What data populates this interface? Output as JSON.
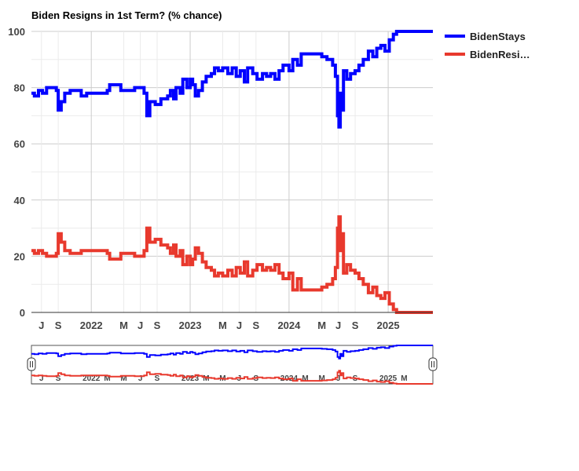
{
  "chart_data": {
    "type": "line",
    "title": "Biden Resigns in 1st Term? (% chance)",
    "ylim": [
      0,
      100
    ],
    "y_ticks": [
      0,
      20,
      40,
      60,
      80,
      100
    ],
    "x_range": [
      "2021-05-25",
      "2025-06-15"
    ],
    "x_ticks": [
      {
        "date": "2021-07-01",
        "label": "J"
      },
      {
        "date": "2021-09-01",
        "label": "S"
      },
      {
        "date": "2022-01-01",
        "label": "2022"
      },
      {
        "date": "2022-05-01",
        "label": "M"
      },
      {
        "date": "2022-07-01",
        "label": "J"
      },
      {
        "date": "2022-09-01",
        "label": "S"
      },
      {
        "date": "2023-01-01",
        "label": "2023"
      },
      {
        "date": "2023-05-01",
        "label": "M"
      },
      {
        "date": "2023-07-01",
        "label": "J"
      },
      {
        "date": "2023-09-01",
        "label": "S"
      },
      {
        "date": "2024-01-01",
        "label": "2024"
      },
      {
        "date": "2024-05-01",
        "label": "M"
      },
      {
        "date": "2024-07-01",
        "label": "J"
      },
      {
        "date": "2024-09-01",
        "label": "S"
      },
      {
        "date": "2025-01-01",
        "label": "2025"
      }
    ],
    "mini_x_ticks": [
      {
        "date": "2021-07-01",
        "label": "J"
      },
      {
        "date": "2021-09-01",
        "label": "S"
      },
      {
        "date": "2022-01-01",
        "label": "2022"
      },
      {
        "date": "2022-03-01",
        "label": "M"
      },
      {
        "date": "2022-05-01",
        "label": "M"
      },
      {
        "date": "2022-07-01",
        "label": "J"
      },
      {
        "date": "2022-09-01",
        "label": "S"
      },
      {
        "date": "2023-01-01",
        "label": "2023"
      },
      {
        "date": "2023-03-01",
        "label": "M"
      },
      {
        "date": "2023-05-01",
        "label": "M"
      },
      {
        "date": "2023-07-01",
        "label": "J"
      },
      {
        "date": "2023-09-01",
        "label": "S"
      },
      {
        "date": "2024-01-01",
        "label": "2024"
      },
      {
        "date": "2024-03-01",
        "label": "M"
      },
      {
        "date": "2024-05-01",
        "label": "M"
      },
      {
        "date": "2024-07-01",
        "label": "J"
      },
      {
        "date": "2024-09-01",
        "label": "S"
      },
      {
        "date": "2025-01-01",
        "label": "2025"
      },
      {
        "date": "2025-03-01",
        "label": "M"
      }
    ],
    "legend_position": "right",
    "grid": true,
    "series": [
      {
        "name": "BidenStays",
        "color": "#0000ff",
        "points": [
          [
            "2021-05-25",
            78
          ],
          [
            "2021-06-05",
            77
          ],
          [
            "2021-06-20",
            79
          ],
          [
            "2021-07-05",
            78
          ],
          [
            "2021-07-20",
            80
          ],
          [
            "2021-08-10",
            80
          ],
          [
            "2021-08-25",
            79
          ],
          [
            "2021-09-01",
            72
          ],
          [
            "2021-09-12",
            75
          ],
          [
            "2021-09-25",
            78
          ],
          [
            "2021-10-15",
            79
          ],
          [
            "2021-11-05",
            79
          ],
          [
            "2021-11-25",
            77
          ],
          [
            "2021-12-15",
            78
          ],
          [
            "2022-01-01",
            78
          ],
          [
            "2022-02-01",
            78
          ],
          [
            "2022-03-01",
            79
          ],
          [
            "2022-03-10",
            81
          ],
          [
            "2022-04-10",
            81
          ],
          [
            "2022-04-20",
            79
          ],
          [
            "2022-05-15",
            79
          ],
          [
            "2022-06-10",
            80
          ],
          [
            "2022-07-01",
            80
          ],
          [
            "2022-07-15",
            78
          ],
          [
            "2022-07-25",
            70
          ],
          [
            "2022-08-05",
            75
          ],
          [
            "2022-08-25",
            74
          ],
          [
            "2022-09-15",
            76
          ],
          [
            "2022-10-10",
            77
          ],
          [
            "2022-10-20",
            79
          ],
          [
            "2022-11-01",
            76
          ],
          [
            "2022-11-10",
            80
          ],
          [
            "2022-11-25",
            78
          ],
          [
            "2022-12-05",
            83
          ],
          [
            "2022-12-20",
            80
          ],
          [
            "2023-01-01",
            83
          ],
          [
            "2023-01-10",
            81
          ],
          [
            "2023-01-20",
            77
          ],
          [
            "2023-02-01",
            79
          ],
          [
            "2023-02-15",
            82
          ],
          [
            "2023-03-01",
            84
          ],
          [
            "2023-03-20",
            85
          ],
          [
            "2023-04-01",
            87
          ],
          [
            "2023-04-15",
            86
          ],
          [
            "2023-05-01",
            87
          ],
          [
            "2023-05-20",
            85
          ],
          [
            "2023-06-05",
            87
          ],
          [
            "2023-06-20",
            84
          ],
          [
            "2023-07-05",
            86
          ],
          [
            "2023-07-20",
            82
          ],
          [
            "2023-08-01",
            87
          ],
          [
            "2023-08-20",
            85
          ],
          [
            "2023-09-05",
            83
          ],
          [
            "2023-09-25",
            85
          ],
          [
            "2023-10-10",
            84
          ],
          [
            "2023-10-25",
            85
          ],
          [
            "2023-11-10",
            83
          ],
          [
            "2023-11-25",
            86
          ],
          [
            "2023-12-10",
            88
          ],
          [
            "2024-01-01",
            86
          ],
          [
            "2024-01-15",
            90
          ],
          [
            "2024-02-01",
            88
          ],
          [
            "2024-02-15",
            92
          ],
          [
            "2024-03-15",
            92
          ],
          [
            "2024-04-15",
            92
          ],
          [
            "2024-05-01",
            91
          ],
          [
            "2024-05-20",
            90
          ],
          [
            "2024-06-10",
            88
          ],
          [
            "2024-06-20",
            84
          ],
          [
            "2024-06-28",
            70
          ],
          [
            "2024-07-03",
            66
          ],
          [
            "2024-07-08",
            78
          ],
          [
            "2024-07-14",
            72
          ],
          [
            "2024-07-20",
            86
          ],
          [
            "2024-08-01",
            83
          ],
          [
            "2024-08-15",
            85
          ],
          [
            "2024-09-01",
            86
          ],
          [
            "2024-09-15",
            88
          ],
          [
            "2024-10-01",
            90
          ],
          [
            "2024-10-20",
            93
          ],
          [
            "2024-11-05",
            91
          ],
          [
            "2024-11-20",
            94
          ],
          [
            "2024-12-05",
            95
          ],
          [
            "2024-12-20",
            93
          ],
          [
            "2025-01-05",
            97
          ],
          [
            "2025-01-20",
            99
          ],
          [
            "2025-02-01",
            100
          ],
          [
            "2025-06-15",
            100
          ]
        ]
      },
      {
        "name": "BidenResi…",
        "color": "#e8392d",
        "points": [
          [
            "2021-05-25",
            22
          ],
          [
            "2021-06-05",
            21
          ],
          [
            "2021-06-20",
            22
          ],
          [
            "2021-07-05",
            21
          ],
          [
            "2021-07-20",
            20
          ],
          [
            "2021-08-10",
            20
          ],
          [
            "2021-08-25",
            21
          ],
          [
            "2021-09-01",
            28
          ],
          [
            "2021-09-12",
            25
          ],
          [
            "2021-09-25",
            22
          ],
          [
            "2021-10-15",
            21
          ],
          [
            "2021-11-05",
            21
          ],
          [
            "2021-11-25",
            22
          ],
          [
            "2021-12-15",
            22
          ],
          [
            "2022-01-01",
            22
          ],
          [
            "2022-02-01",
            22
          ],
          [
            "2022-03-01",
            21
          ],
          [
            "2022-03-10",
            19
          ],
          [
            "2022-04-10",
            19
          ],
          [
            "2022-04-20",
            21
          ],
          [
            "2022-05-15",
            21
          ],
          [
            "2022-06-10",
            20
          ],
          [
            "2022-07-01",
            20
          ],
          [
            "2022-07-15",
            22
          ],
          [
            "2022-07-25",
            30
          ],
          [
            "2022-08-05",
            25
          ],
          [
            "2022-08-25",
            26
          ],
          [
            "2022-09-15",
            24
          ],
          [
            "2022-10-10",
            23
          ],
          [
            "2022-10-20",
            21
          ],
          [
            "2022-11-01",
            24
          ],
          [
            "2022-11-10",
            20
          ],
          [
            "2022-11-25",
            22
          ],
          [
            "2022-12-05",
            17
          ],
          [
            "2022-12-20",
            20
          ],
          [
            "2023-01-01",
            17
          ],
          [
            "2023-01-10",
            19
          ],
          [
            "2023-01-20",
            23
          ],
          [
            "2023-02-01",
            21
          ],
          [
            "2023-02-15",
            18
          ],
          [
            "2023-03-01",
            16
          ],
          [
            "2023-03-20",
            15
          ],
          [
            "2023-04-01",
            13
          ],
          [
            "2023-04-15",
            14
          ],
          [
            "2023-05-01",
            13
          ],
          [
            "2023-05-20",
            15
          ],
          [
            "2023-06-05",
            13
          ],
          [
            "2023-06-20",
            16
          ],
          [
            "2023-07-05",
            14
          ],
          [
            "2023-07-20",
            18
          ],
          [
            "2023-08-01",
            13
          ],
          [
            "2023-08-20",
            15
          ],
          [
            "2023-09-05",
            17
          ],
          [
            "2023-09-25",
            15
          ],
          [
            "2023-10-10",
            16
          ],
          [
            "2023-10-25",
            15
          ],
          [
            "2023-11-10",
            17
          ],
          [
            "2023-11-25",
            14
          ],
          [
            "2023-12-10",
            12
          ],
          [
            "2024-01-01",
            14
          ],
          [
            "2024-01-15",
            8
          ],
          [
            "2024-02-01",
            12
          ],
          [
            "2024-02-15",
            8
          ],
          [
            "2024-03-15",
            8
          ],
          [
            "2024-04-15",
            8
          ],
          [
            "2024-05-01",
            9
          ],
          [
            "2024-05-20",
            10
          ],
          [
            "2024-06-10",
            12
          ],
          [
            "2024-06-20",
            16
          ],
          [
            "2024-06-28",
            30
          ],
          [
            "2024-07-03",
            34
          ],
          [
            "2024-07-08",
            22
          ],
          [
            "2024-07-14",
            28
          ],
          [
            "2024-07-20",
            14
          ],
          [
            "2024-08-01",
            17
          ],
          [
            "2024-08-15",
            15
          ],
          [
            "2024-09-01",
            14
          ],
          [
            "2024-09-15",
            12
          ],
          [
            "2024-10-01",
            10
          ],
          [
            "2024-10-20",
            7
          ],
          [
            "2024-11-05",
            9
          ],
          [
            "2024-11-20",
            6
          ],
          [
            "2024-12-05",
            5
          ],
          [
            "2024-12-20",
            7
          ],
          [
            "2025-01-05",
            3
          ],
          [
            "2025-01-20",
            1
          ],
          [
            "2025-02-01",
            0
          ],
          [
            "2025-06-15",
            0
          ]
        ]
      }
    ]
  }
}
